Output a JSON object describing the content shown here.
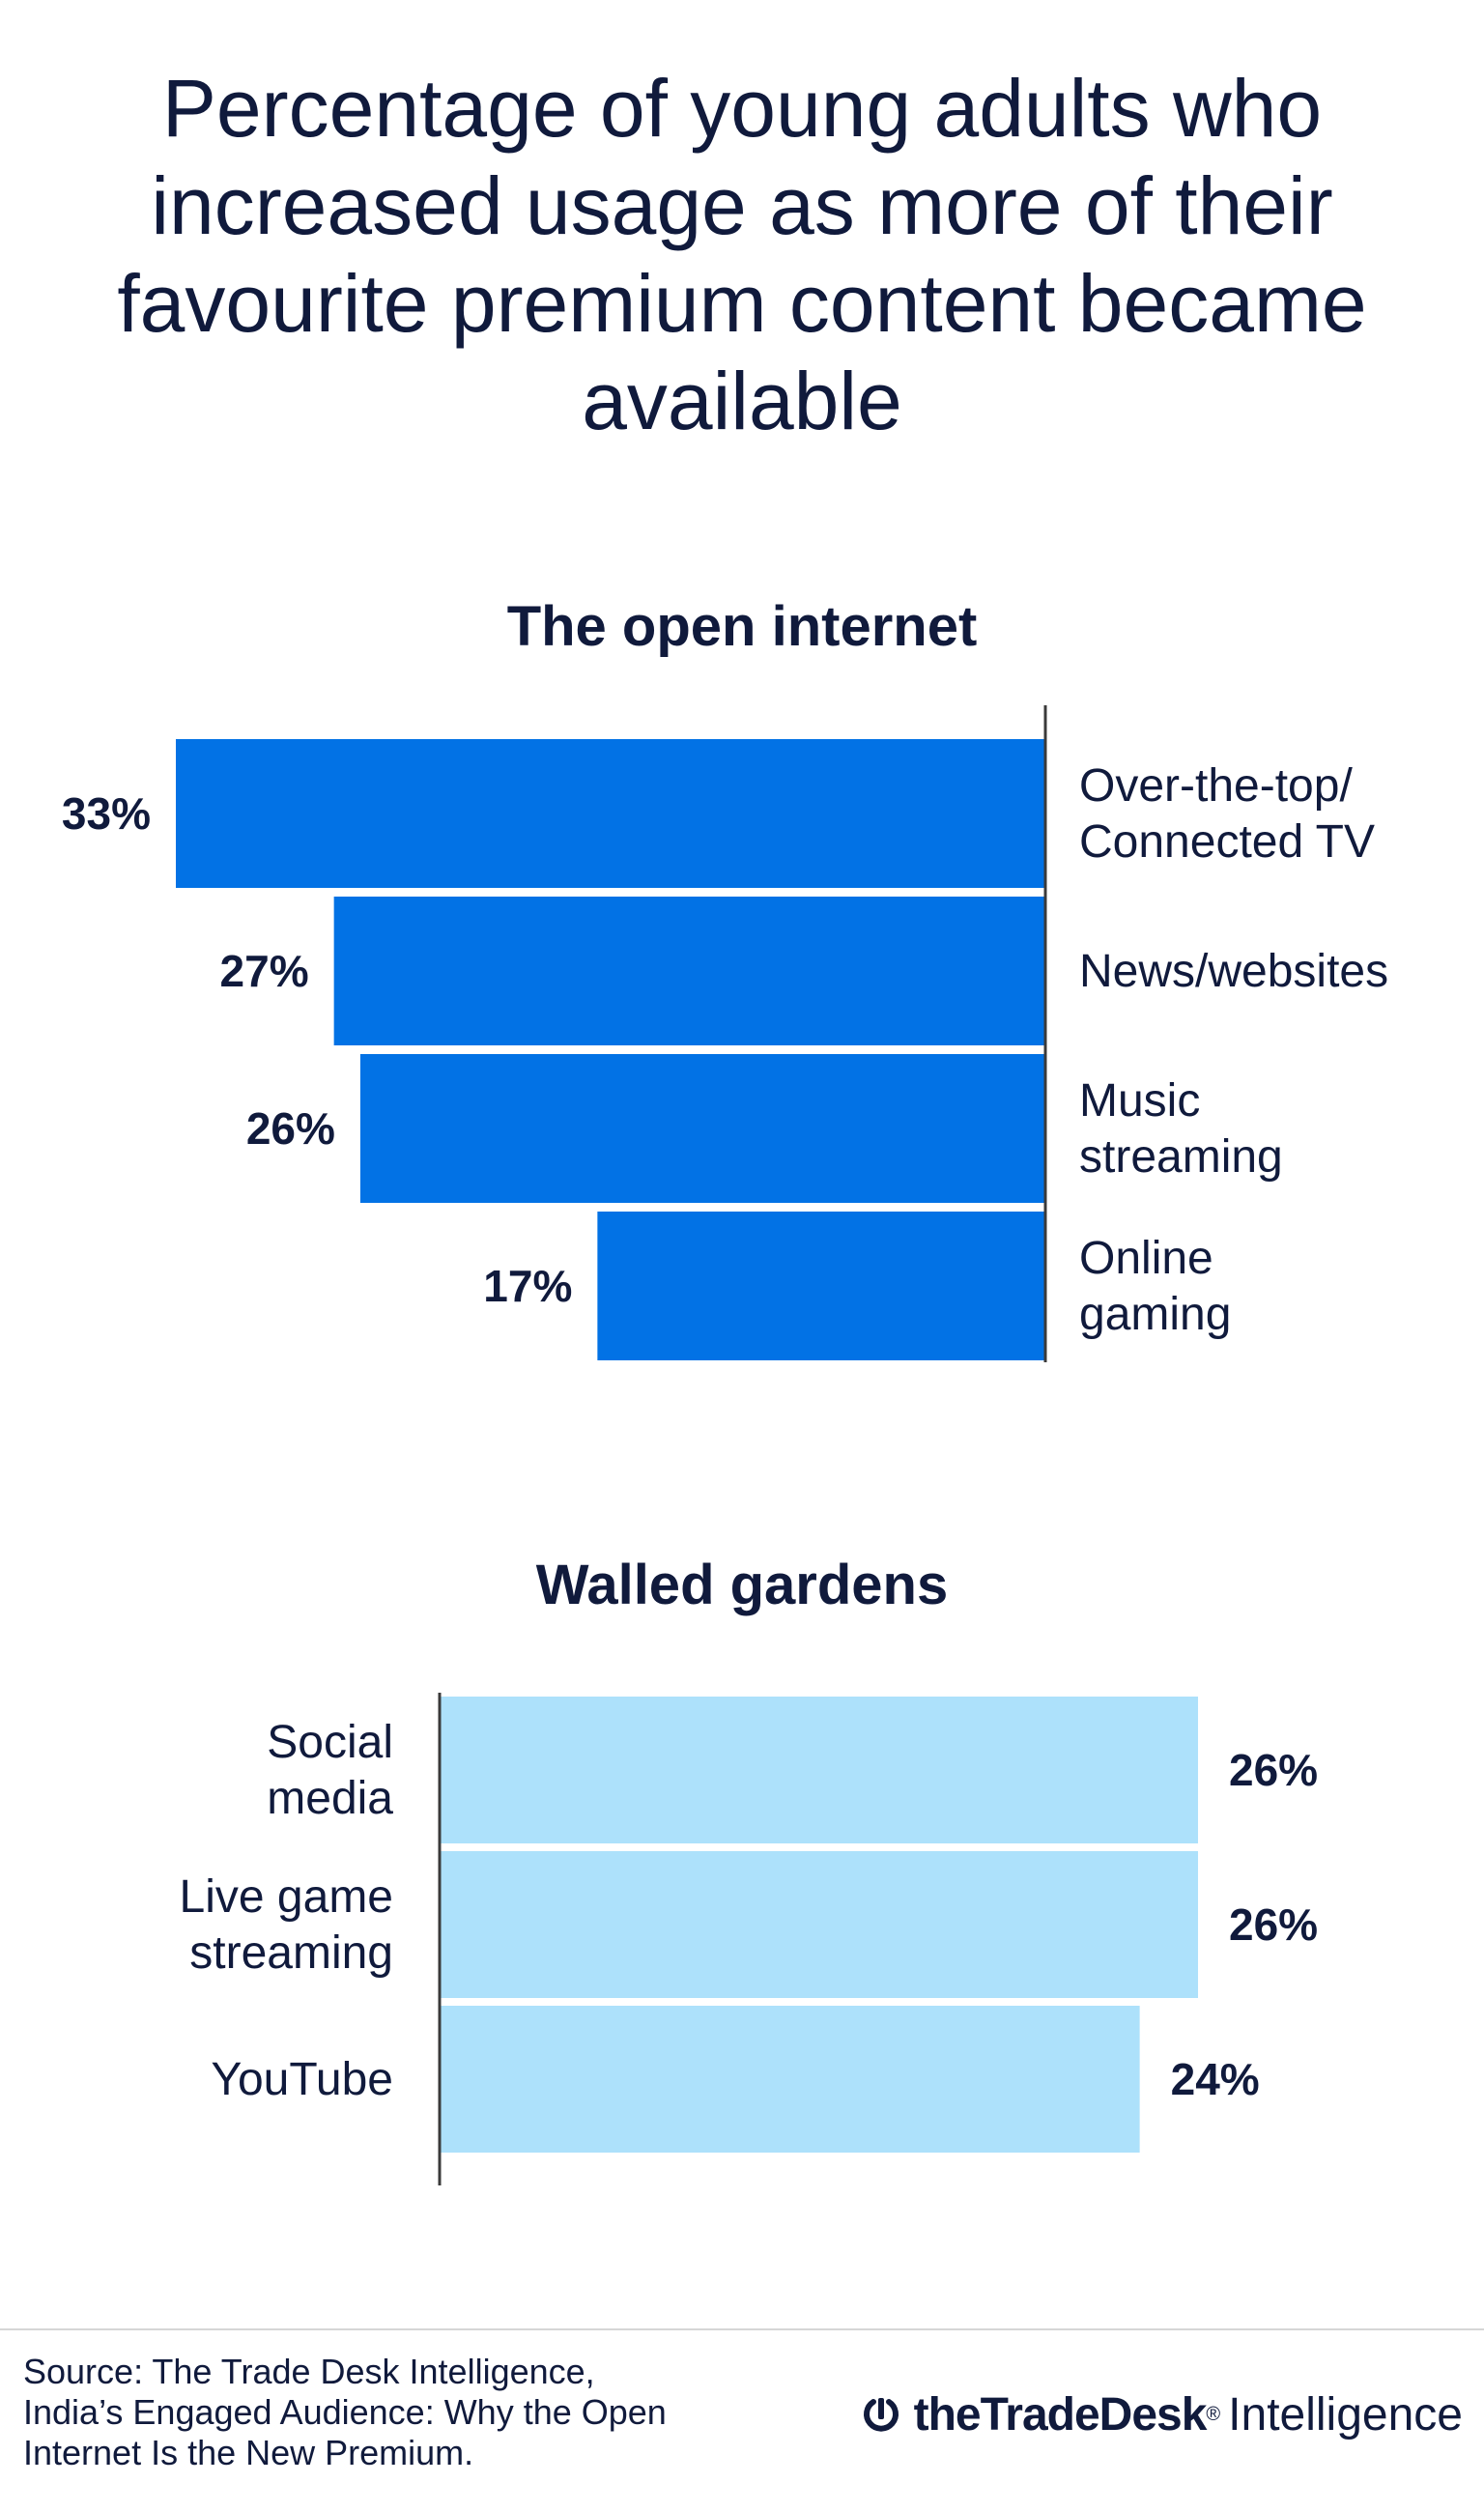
{
  "title": "Percentage of young adults who increased usage as more of their favourite premium content became available",
  "colors": {
    "open_internet_bar": "#0272e5",
    "walled_gardens_bar": "#ade1fb",
    "text": "#101a3c",
    "axis": "#3a3a3a"
  },
  "chart_data": [
    {
      "type": "bar",
      "orientation": "horizontal",
      "title": "The open internet",
      "categories": [
        [
          "Over-the-top/",
          "Connected TV"
        ],
        [
          "News/websites"
        ],
        [
          "Music",
          "streaming"
        ],
        [
          "Online",
          "gaming"
        ]
      ],
      "values": [
        33,
        27,
        26,
        17
      ],
      "value_labels": [
        "33%",
        "27%",
        "26%",
        "17%"
      ],
      "unit": "%",
      "grid": false,
      "legend": "none",
      "bar_direction": "right-to-left",
      "label_placement": "categories right of axis, values left of bars"
    },
    {
      "type": "bar",
      "orientation": "horizontal",
      "title": "Walled gardens",
      "categories": [
        [
          "Social",
          "media"
        ],
        [
          "Live game",
          "streaming"
        ],
        [
          "YouTube"
        ]
      ],
      "values": [
        26,
        26,
        24
      ],
      "value_labels": [
        "26%",
        "26%",
        "24%"
      ],
      "unit": "%",
      "grid": false,
      "legend": "none",
      "bar_direction": "left-to-right",
      "label_placement": "categories left of axis, values right of bars"
    }
  ],
  "footer": {
    "source": "Source: The Trade Desk Intelligence,\nIndia’s Engaged Audience: Why the Open\nInternet Is the New Premium.",
    "brand_icon": "trade-desk-logo-icon",
    "brand_name": "theTradeDesk",
    "brand_mark": "®",
    "brand_suffix": "Intelligence"
  }
}
